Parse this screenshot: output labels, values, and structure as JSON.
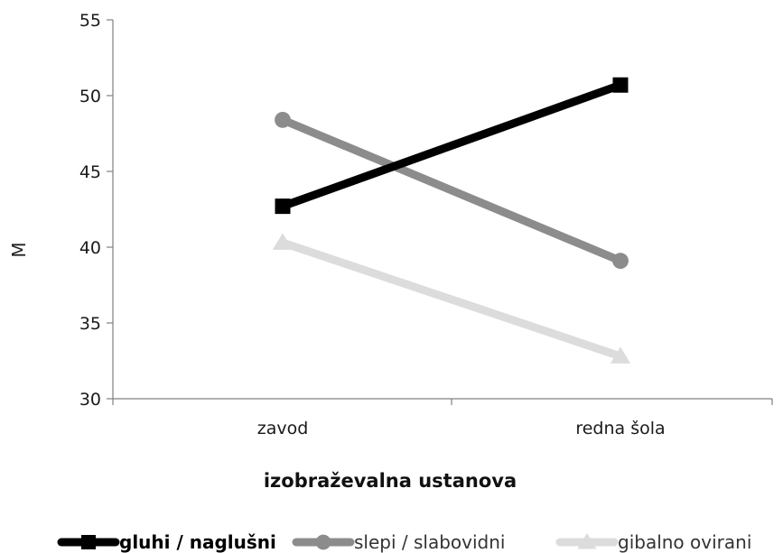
{
  "chart_data": {
    "type": "line",
    "title": "",
    "xlabel": "izobraževalna ustanova",
    "ylabel": "M",
    "categories": [
      "zavod",
      "redna šola"
    ],
    "ylim": [
      30,
      55
    ],
    "yticks": [
      30,
      35,
      40,
      45,
      50,
      55
    ],
    "grid": false,
    "legend_position": "bottom",
    "series": [
      {
        "name": "gluhi / naglušni",
        "values": [
          42.7,
          50.7
        ],
        "color": "#000000",
        "marker": "square"
      },
      {
        "name": "slepi / slabovidni",
        "values": [
          48.4,
          39.1
        ],
        "color": "#8c8c8c",
        "marker": "circle"
      },
      {
        "name": "gibalno ovirani",
        "values": [
          40.3,
          32.8
        ],
        "color": "#dcdcdc",
        "marker": "triangle"
      }
    ]
  }
}
